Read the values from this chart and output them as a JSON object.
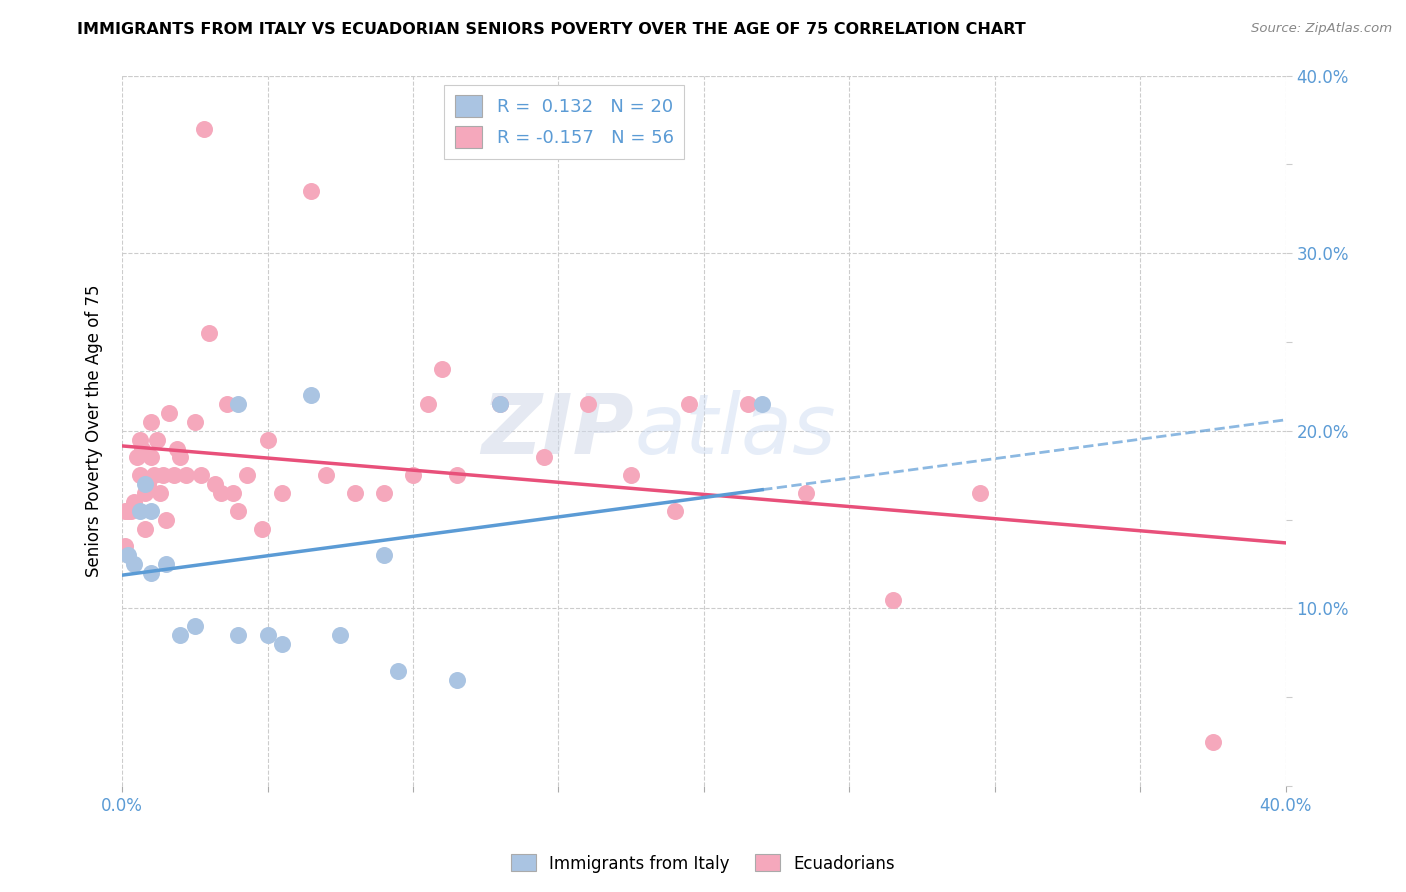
{
  "title": "IMMIGRANTS FROM ITALY VS ECUADORIAN SENIORS POVERTY OVER THE AGE OF 75 CORRELATION CHART",
  "source": "Source: ZipAtlas.com",
  "ylabel": "Seniors Poverty Over the Age of 75",
  "xlim": [
    0.0,
    0.4
  ],
  "ylim": [
    0.0,
    0.4
  ],
  "italy_color": "#aac4e2",
  "ecuador_color": "#f5a8bc",
  "italy_line_color": "#5b9bd5",
  "ecuador_line_color": "#e8507a",
  "italy_R": 0.132,
  "italy_N": 20,
  "ecuador_R": -0.157,
  "ecuador_N": 56,
  "legend_label_italy": "Immigrants from Italy",
  "legend_label_ecuador": "Ecuadorians",
  "watermark_part1": "ZIP",
  "watermark_part2": "atlas",
  "italy_x": [
    0.002,
    0.004,
    0.006,
    0.008,
    0.01,
    0.01,
    0.015,
    0.02,
    0.025,
    0.04,
    0.04,
    0.05,
    0.055,
    0.065,
    0.075,
    0.09,
    0.095,
    0.115,
    0.13,
    0.22
  ],
  "italy_y": [
    0.13,
    0.125,
    0.155,
    0.17,
    0.12,
    0.155,
    0.125,
    0.085,
    0.09,
    0.215,
    0.085,
    0.085,
    0.08,
    0.22,
    0.085,
    0.13,
    0.065,
    0.06,
    0.215,
    0.215
  ],
  "ecuador_x": [
    0.001,
    0.001,
    0.002,
    0.003,
    0.004,
    0.005,
    0.006,
    0.006,
    0.007,
    0.008,
    0.008,
    0.009,
    0.01,
    0.01,
    0.011,
    0.012,
    0.013,
    0.014,
    0.015,
    0.016,
    0.018,
    0.019,
    0.02,
    0.022,
    0.025,
    0.027,
    0.028,
    0.03,
    0.032,
    0.034,
    0.036,
    0.038,
    0.04,
    0.043,
    0.048,
    0.05,
    0.055,
    0.065,
    0.07,
    0.08,
    0.09,
    0.1,
    0.105,
    0.11,
    0.115,
    0.13,
    0.145,
    0.16,
    0.175,
    0.19,
    0.195,
    0.215,
    0.235,
    0.265,
    0.295,
    0.375
  ],
  "ecuador_y": [
    0.155,
    0.135,
    0.155,
    0.155,
    0.16,
    0.185,
    0.195,
    0.175,
    0.19,
    0.145,
    0.165,
    0.17,
    0.205,
    0.185,
    0.175,
    0.195,
    0.165,
    0.175,
    0.15,
    0.21,
    0.175,
    0.19,
    0.185,
    0.175,
    0.205,
    0.175,
    0.37,
    0.255,
    0.17,
    0.165,
    0.215,
    0.165,
    0.155,
    0.175,
    0.145,
    0.195,
    0.165,
    0.335,
    0.175,
    0.165,
    0.165,
    0.175,
    0.215,
    0.235,
    0.175,
    0.215,
    0.185,
    0.215,
    0.175,
    0.155,
    0.215,
    0.215,
    0.165,
    0.105,
    0.165,
    0.025
  ]
}
